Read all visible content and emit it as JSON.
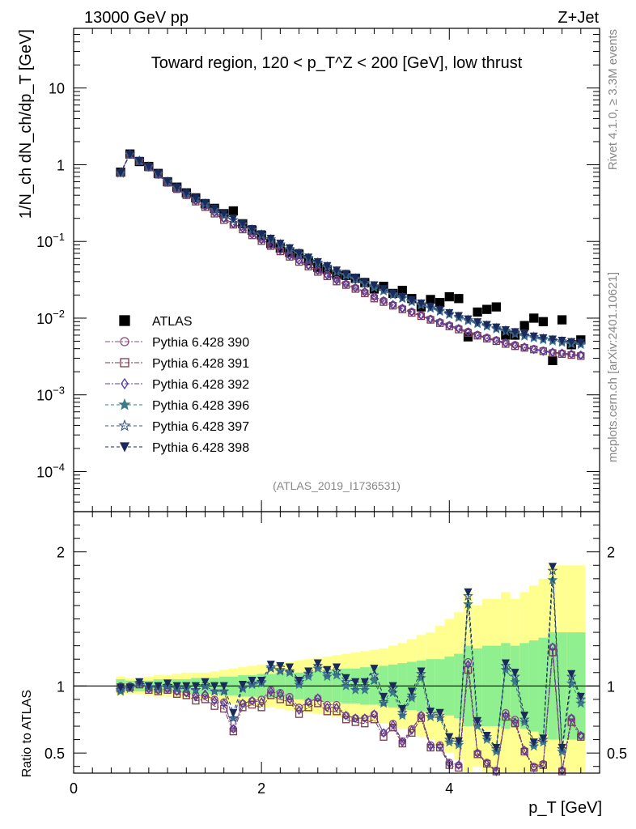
{
  "header": {
    "energy": "13000 GeV pp",
    "process": "Z+Jet",
    "plot_title": "Toward region, 120 < p_T^Z < 200 [GeV], low thrust",
    "analysis_id": "(ATLAS_2019_I1736531)",
    "side_top": "Rivet 4.1.0, ≥ 3.3M events",
    "side_bottom": "mcplots.cern.ch [arXiv:2401.10621]"
  },
  "chart_data": [
    {
      "type": "scatter",
      "panel": "main",
      "ylabel": "1/N_ch dN_ch/dp_T [GeV]",
      "yscale": "log",
      "xlim": [
        0,
        5.6
      ],
      "ylim": [
        3e-05,
        60
      ],
      "yticks": [
        "10",
        "1",
        "10^-1",
        "10^-2",
        "10^-3",
        "10^-4"
      ],
      "x": [
        0.5,
        0.6,
        0.7,
        0.8,
        0.9,
        1.0,
        1.1,
        1.2,
        1.3,
        1.4,
        1.5,
        1.6,
        1.7,
        1.8,
        1.9,
        2.0,
        2.1,
        2.2,
        2.3,
        2.4,
        2.5,
        2.6,
        2.7,
        2.8,
        2.9,
        3.0,
        3.1,
        3.2,
        3.3,
        3.4,
        3.5,
        3.6,
        3.7,
        3.8,
        3.9,
        4.0,
        4.1,
        4.2,
        4.3,
        4.4,
        4.5,
        4.6,
        4.7,
        4.8,
        4.9,
        5.0,
        5.1,
        5.2,
        5.3,
        5.4
      ],
      "series": [
        {
          "name": "ATLAS",
          "values": [
            0.8,
            1.38,
            1.1,
            0.95,
            0.77,
            0.6,
            0.51,
            0.43,
            0.37,
            0.31,
            0.27,
            0.23,
            0.25,
            0.17,
            0.14,
            0.12,
            0.094,
            0.082,
            0.072,
            0.068,
            0.056,
            0.046,
            0.043,
            0.037,
            0.036,
            0.033,
            0.029,
            0.024,
            0.026,
            0.021,
            0.023,
            0.018,
            0.014,
            0.0175,
            0.016,
            0.019,
            0.018,
            0.0057,
            0.012,
            0.013,
            0.014,
            0.006,
            0.006,
            0.008,
            0.01,
            0.009,
            0.0028,
            0.0095,
            0.0045,
            0.0052
          ]
        },
        {
          "name": "Pythia 6.428 390",
          "values": [
            0.8,
            1.38,
            1.13,
            0.93,
            0.75,
            0.59,
            0.49,
            0.41,
            0.34,
            0.29,
            0.24,
            0.2,
            0.17,
            0.15,
            0.125,
            0.106,
            0.091,
            0.078,
            0.066,
            0.057,
            0.049,
            0.042,
            0.037,
            0.032,
            0.028,
            0.025,
            0.022,
            0.019,
            0.017,
            0.015,
            0.0135,
            0.0122,
            0.011,
            0.0098,
            0.0089,
            0.0081,
            0.0074,
            0.0067,
            0.0061,
            0.0056,
            0.0052,
            0.0048,
            0.0045,
            0.0042,
            0.004,
            0.0038,
            0.0036,
            0.0035,
            0.0034,
            0.0033
          ]
        },
        {
          "name": "Pythia 6.428 391",
          "values": [
            0.78,
            1.36,
            1.11,
            0.92,
            0.74,
            0.58,
            0.48,
            0.4,
            0.33,
            0.28,
            0.23,
            0.19,
            0.165,
            0.143,
            0.12,
            0.101,
            0.087,
            0.074,
            0.063,
            0.054,
            0.047,
            0.04,
            0.035,
            0.03,
            0.027,
            0.024,
            0.021,
            0.018,
            0.0162,
            0.0145,
            0.013,
            0.0117,
            0.0106,
            0.0095,
            0.0086,
            0.0078,
            0.0071,
            0.0064,
            0.0059,
            0.0054,
            0.005,
            0.0046,
            0.0043,
            0.0041,
            0.0039,
            0.0037,
            0.0035,
            0.0034,
            0.0033,
            0.0032
          ]
        },
        {
          "name": "Pythia 6.428 392",
          "values": [
            0.79,
            1.37,
            1.12,
            0.93,
            0.75,
            0.59,
            0.49,
            0.41,
            0.34,
            0.29,
            0.24,
            0.2,
            0.17,
            0.148,
            0.124,
            0.105,
            0.09,
            0.077,
            0.065,
            0.056,
            0.049,
            0.042,
            0.036,
            0.031,
            0.028,
            0.025,
            0.022,
            0.019,
            0.0168,
            0.015,
            0.0134,
            0.012,
            0.0109,
            0.0097,
            0.0088,
            0.008,
            0.0073,
            0.0066,
            0.006,
            0.0055,
            0.0051,
            0.0047,
            0.0044,
            0.0042,
            0.0039,
            0.0037,
            0.0036,
            0.0035,
            0.0034,
            0.0033
          ]
        },
        {
          "name": "Pythia 6.428 396",
          "values": [
            0.77,
            1.35,
            1.12,
            0.94,
            0.76,
            0.6,
            0.5,
            0.42,
            0.36,
            0.31,
            0.26,
            0.22,
            0.19,
            0.167,
            0.142,
            0.122,
            0.106,
            0.091,
            0.079,
            0.069,
            0.06,
            0.052,
            0.046,
            0.04,
            0.036,
            0.032,
            0.028,
            0.025,
            0.0225,
            0.02,
            0.018,
            0.0163,
            0.0148,
            0.0134,
            0.0122,
            0.0111,
            0.0101,
            0.0092,
            0.0084,
            0.0078,
            0.0072,
            0.0067,
            0.0062,
            0.0058,
            0.0055,
            0.0052,
            0.005,
            0.0048,
            0.0046,
            0.0045
          ]
        },
        {
          "name": "Pythia 6.428 397",
          "values": [
            0.78,
            1.36,
            1.12,
            0.94,
            0.76,
            0.6,
            0.5,
            0.42,
            0.36,
            0.31,
            0.26,
            0.22,
            0.19,
            0.168,
            0.143,
            0.123,
            0.107,
            0.092,
            0.08,
            0.07,
            0.061,
            0.053,
            0.047,
            0.041,
            0.037,
            0.033,
            0.029,
            0.026,
            0.023,
            0.0205,
            0.0185,
            0.0167,
            0.0152,
            0.0138,
            0.0125,
            0.0114,
            0.0104,
            0.0095,
            0.0087,
            0.008,
            0.0074,
            0.0069,
            0.0064,
            0.006,
            0.0057,
            0.0054,
            0.0052,
            0.005,
            0.0048,
            0.0047
          ]
        },
        {
          "name": "Pythia 6.428 398",
          "values": [
            0.79,
            1.37,
            1.13,
            0.95,
            0.77,
            0.61,
            0.51,
            0.43,
            0.37,
            0.32,
            0.27,
            0.23,
            0.2,
            0.172,
            0.146,
            0.125,
            0.109,
            0.094,
            0.082,
            0.071,
            0.062,
            0.054,
            0.048,
            0.042,
            0.038,
            0.034,
            0.03,
            0.027,
            0.024,
            0.021,
            0.019,
            0.0172,
            0.0156,
            0.0141,
            0.0128,
            0.0117,
            0.0107,
            0.0097,
            0.0089,
            0.0082,
            0.0076,
            0.007,
            0.0066,
            0.0062,
            0.0058,
            0.0055,
            0.0053,
            0.0051,
            0.0049,
            0.0048
          ]
        }
      ]
    },
    {
      "type": "scatter",
      "panel": "ratio",
      "ylabel": "Ratio to ATLAS",
      "xlabel": "p_T [GeV]",
      "xlim": [
        0,
        5.6
      ],
      "ylim": [
        0.35,
        2.3
      ],
      "xticks": [
        "0",
        "2",
        "4"
      ],
      "yticks": [
        "0.5",
        "1",
        "2"
      ],
      "x": [
        0.5,
        0.6,
        0.7,
        0.8,
        0.9,
        1.0,
        1.1,
        1.2,
        1.3,
        1.4,
        1.5,
        1.6,
        1.7,
        1.8,
        1.9,
        2.0,
        2.1,
        2.2,
        2.3,
        2.4,
        2.5,
        2.6,
        2.7,
        2.8,
        2.9,
        3.0,
        3.1,
        3.2,
        3.3,
        3.4,
        3.5,
        3.6,
        3.7,
        3.8,
        3.9,
        4.0,
        4.1,
        4.2,
        4.3,
        4.4,
        4.5,
        4.6,
        4.7,
        4.8,
        4.9,
        5.0,
        5.1,
        5.2,
        5.3,
        5.4
      ],
      "band_inner": [
        0.05,
        0.04,
        0.04,
        0.04,
        0.05,
        0.05,
        0.05,
        0.05,
        0.06,
        0.06,
        0.06,
        0.07,
        0.07,
        0.08,
        0.08,
        0.09,
        0.09,
        0.1,
        0.1,
        0.1,
        0.11,
        0.11,
        0.12,
        0.12,
        0.13,
        0.13,
        0.14,
        0.14,
        0.15,
        0.16,
        0.17,
        0.18,
        0.19,
        0.2,
        0.2,
        0.22,
        0.24,
        0.3,
        0.28,
        0.3,
        0.3,
        0.32,
        0.3,
        0.32,
        0.34,
        0.36,
        0.4,
        0.4,
        0.4,
        0.4
      ],
      "band_outer": [
        0.07,
        0.06,
        0.06,
        0.07,
        0.08,
        0.08,
        0.09,
        0.1,
        0.1,
        0.1,
        0.11,
        0.12,
        0.13,
        0.14,
        0.15,
        0.16,
        0.16,
        0.17,
        0.18,
        0.19,
        0.2,
        0.21,
        0.22,
        0.23,
        0.24,
        0.25,
        0.26,
        0.27,
        0.28,
        0.3,
        0.32,
        0.35,
        0.38,
        0.4,
        0.45,
        0.5,
        0.55,
        0.7,
        0.6,
        0.65,
        0.65,
        0.7,
        0.65,
        0.7,
        0.75,
        0.8,
        0.9,
        0.9,
        0.9,
        0.9
      ],
      "series": [
        {
          "name": "Pythia 6.428 390",
          "values": [
            1.0,
            1.0,
            1.02,
            0.98,
            0.97,
            0.98,
            0.96,
            0.95,
            0.93,
            0.93,
            0.9,
            0.88,
            0.68,
            0.87,
            0.89,
            0.9,
            0.97,
            0.95,
            0.92,
            0.84,
            0.88,
            0.91,
            0.86,
            0.86,
            0.78,
            0.76,
            0.76,
            0.79,
            0.65,
            0.72,
            0.59,
            0.68,
            0.78,
            0.56,
            0.56,
            0.43,
            0.41,
            1.18,
            0.5,
            0.43,
            0.37,
            0.8,
            0.75,
            0.52,
            0.4,
            0.42,
            1.29,
            0.37,
            0.76,
            0.63
          ]
        },
        {
          "name": "Pythia 6.428 391",
          "values": [
            0.98,
            0.99,
            1.01,
            0.97,
            0.96,
            0.97,
            0.94,
            0.93,
            0.89,
            0.9,
            0.85,
            0.83,
            0.66,
            0.84,
            0.86,
            0.84,
            0.93,
            0.9,
            0.88,
            0.79,
            0.84,
            0.87,
            0.81,
            0.81,
            0.75,
            0.73,
            0.72,
            0.75,
            0.62,
            0.69,
            0.57,
            0.65,
            0.76,
            0.54,
            0.54,
            0.41,
            0.39,
            1.12,
            0.49,
            0.42,
            0.36,
            0.77,
            0.72,
            0.51,
            0.39,
            0.41,
            1.25,
            0.36,
            0.73,
            0.62
          ]
        },
        {
          "name": "Pythia 6.428 392",
          "values": [
            0.99,
            0.99,
            1.02,
            0.98,
            0.97,
            0.98,
            0.96,
            0.95,
            0.92,
            0.94,
            0.89,
            0.87,
            0.68,
            0.87,
            0.89,
            0.88,
            0.96,
            0.94,
            0.9,
            0.82,
            0.88,
            0.91,
            0.84,
            0.84,
            0.78,
            0.76,
            0.76,
            0.79,
            0.65,
            0.71,
            0.58,
            0.67,
            0.78,
            0.55,
            0.55,
            0.42,
            0.41,
            1.16,
            0.5,
            0.42,
            0.36,
            0.78,
            0.73,
            0.52,
            0.39,
            0.41,
            1.29,
            0.37,
            0.76,
            0.63
          ]
        },
        {
          "name": "Pythia 6.428 396",
          "values": [
            0.96,
            0.98,
            1.02,
            0.99,
            0.99,
            1.0,
            0.98,
            0.98,
            0.97,
            1.0,
            0.96,
            0.96,
            0.76,
            0.98,
            1.01,
            1.02,
            1.13,
            1.11,
            1.1,
            1.01,
            1.07,
            1.13,
            1.07,
            1.08,
            1.0,
            0.97,
            0.97,
            1.04,
            0.87,
            0.95,
            0.78,
            0.91,
            1.06,
            0.77,
            0.76,
            0.58,
            0.56,
            1.61,
            0.7,
            0.6,
            0.51,
            1.12,
            1.03,
            0.73,
            0.55,
            0.58,
            1.79,
            0.51,
            1.02,
            0.87
          ]
        },
        {
          "name": "Pythia 6.428 397",
          "values": [
            0.97,
            0.99,
            1.02,
            0.99,
            0.99,
            1.0,
            0.98,
            0.98,
            0.97,
            1.0,
            0.96,
            0.96,
            0.76,
            0.99,
            1.02,
            1.03,
            1.14,
            1.12,
            1.11,
            1.03,
            1.09,
            1.15,
            1.09,
            1.11,
            1.03,
            1.0,
            1.0,
            1.08,
            0.88,
            0.98,
            0.8,
            0.93,
            1.09,
            0.79,
            0.78,
            0.6,
            0.58,
            1.67,
            0.73,
            0.62,
            0.53,
            1.15,
            1.07,
            0.75,
            0.57,
            0.6,
            1.86,
            0.53,
            1.07,
            0.9
          ]
        },
        {
          "name": "Pythia 6.428 398",
          "values": [
            0.99,
            0.99,
            1.03,
            1.0,
            1.0,
            1.02,
            1.0,
            1.0,
            1.0,
            1.03,
            1.0,
            1.0,
            0.8,
            1.01,
            1.04,
            1.04,
            1.16,
            1.15,
            1.14,
            1.04,
            1.11,
            1.17,
            1.12,
            1.14,
            1.06,
            1.03,
            1.03,
            1.13,
            0.92,
            1.0,
            0.83,
            0.96,
            1.11,
            0.81,
            0.8,
            0.62,
            0.59,
            1.7,
            0.74,
            0.63,
            0.54,
            1.17,
            1.1,
            0.78,
            0.58,
            0.61,
            1.89,
            0.54,
            1.09,
            0.92
          ]
        }
      ]
    }
  ],
  "legend": {
    "items": [
      {
        "label": "ATLAS",
        "color": "#000000",
        "marker": "square-filled"
      },
      {
        "label": "Pythia 6.428 390",
        "color": "#8a4a82",
        "marker": "circle-open"
      },
      {
        "label": "Pythia 6.428 391",
        "color": "#7a3a4a",
        "marker": "square-open"
      },
      {
        "label": "Pythia 6.428 392",
        "color": "#5a3aa0",
        "marker": "diamond-open"
      },
      {
        "label": "Pythia 6.428 396",
        "color": "#3a7a8a",
        "marker": "star-filled"
      },
      {
        "label": "Pythia 6.428 397",
        "color": "#3a5a8a",
        "marker": "star-open"
      },
      {
        "label": "Pythia 6.428 398",
        "color": "#1a2a5a",
        "marker": "triangle-down-filled"
      }
    ]
  },
  "colors": {
    "band_inner": "#90f090",
    "band_outer": "#ffff90"
  }
}
